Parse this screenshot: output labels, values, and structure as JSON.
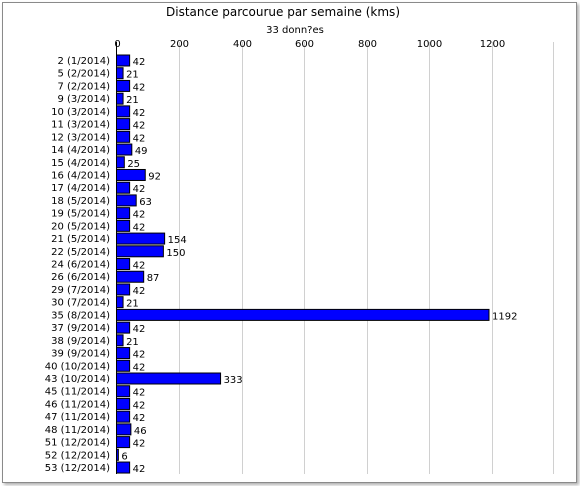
{
  "chart_data": {
    "type": "bar",
    "orientation": "horizontal",
    "title": "Distance parcourue par semaine (kms)",
    "subtitle": "33 donn?es",
    "xlim": [
      0,
      1400
    ],
    "x_ticks": [
      0,
      200,
      400,
      600,
      800,
      1000,
      1200
    ],
    "x_axis_position": "top",
    "grid": "vertical",
    "bar_color": "#0000ff",
    "categories": [
      "2 (1/2014)",
      "5 (2/2014)",
      "7 (2/2014)",
      "9 (3/2014)",
      "10 (3/2014)",
      "11 (3/2014)",
      "12 (3/2014)",
      "14 (4/2014)",
      "15 (4/2014)",
      "16 (4/2014)",
      "17 (4/2014)",
      "18 (5/2014)",
      "19 (5/2014)",
      "20 (5/2014)",
      "21 (5/2014)",
      "22 (5/2014)",
      "24 (6/2014)",
      "26 (6/2014)",
      "29 (7/2014)",
      "30 (7/2014)",
      "35 (8/2014)",
      "37 (9/2014)",
      "38 (9/2014)",
      "39 (9/2014)",
      "40 (10/2014)",
      "43 (10/2014)",
      "45 (11/2014)",
      "46 (11/2014)",
      "47 (11/2014)",
      "48 (11/2014)",
      "51 (12/2014)",
      "52 (12/2014)",
      "53 (12/2014)"
    ],
    "values": [
      42,
      21,
      42,
      21,
      42,
      42,
      42,
      49,
      25,
      92,
      42,
      63,
      42,
      42,
      154,
      150,
      42,
      87,
      42,
      21,
      1192,
      42,
      21,
      42,
      42,
      333,
      42,
      42,
      42,
      46,
      42,
      6,
      42
    ]
  }
}
